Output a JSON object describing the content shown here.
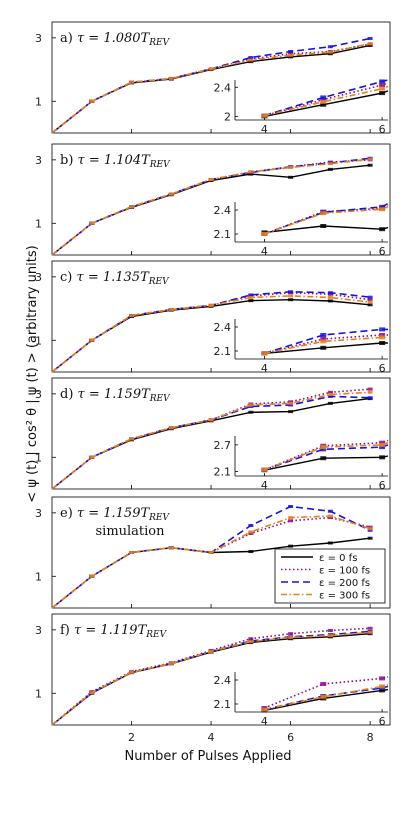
{
  "figure": {
    "xlabel": "Number of Pulses Applied",
    "ylabel": "< ψ (t) | cos² θ | ψ (t) > (arbitrary units)",
    "x_ticks": [
      "2",
      "4",
      "6",
      "8"
    ],
    "y_ticks": [
      "1",
      "3"
    ]
  },
  "colors": {
    "eps0": "#000000",
    "eps100": "#8b0a8b",
    "eps200": "#1515d9",
    "eps300": "#e8801a"
  },
  "legend": {
    "entries": [
      "ε = 0 fs",
      "ε = 100 fs",
      "ε = 200 fs",
      "ε = 300 fs"
    ]
  },
  "chart_data": [
    {
      "type": "line",
      "label": "a)",
      "title": "τ = 1.080T",
      "title_sub": "REV",
      "xlim": [
        0,
        8.5
      ],
      "ylim": [
        0,
        3.5
      ],
      "series": [
        {
          "name": "ε = 0 fs",
          "x": [
            0,
            1,
            2,
            3,
            4,
            5,
            6,
            7,
            8
          ],
          "y": [
            0,
            1.0,
            1.58,
            1.7,
            2.0,
            2.25,
            2.4,
            2.5,
            2.76
          ]
        },
        {
          "name": "ε = 100 fs",
          "x": [
            0,
            1,
            2,
            3,
            4,
            5,
            6,
            7,
            8
          ],
          "y": [
            0,
            1.0,
            1.6,
            1.72,
            2.02,
            2.33,
            2.5,
            2.57,
            2.8
          ]
        },
        {
          "name": "ε = 200 fs",
          "x": [
            0,
            1,
            2,
            3,
            4,
            5,
            6,
            7,
            8
          ],
          "y": [
            0,
            1.0,
            1.6,
            1.72,
            2.02,
            2.38,
            2.57,
            2.72,
            2.98
          ]
        },
        {
          "name": "ε = 300 fs",
          "x": [
            0,
            1,
            2,
            3,
            4,
            5,
            6,
            7,
            8
          ],
          "y": [
            0,
            1.0,
            1.6,
            1.72,
            2.02,
            2.3,
            2.45,
            2.55,
            2.82
          ]
        }
      ],
      "inset": {
        "xlim": [
          3.5,
          6.1
        ],
        "ylim": [
          1.95,
          2.5
        ],
        "x_ticks": [
          "4",
          "6"
        ],
        "y_ticks": [
          "2",
          "2.4"
        ],
        "series": [
          {
            "name": "ε = 0 fs",
            "x": [
              4,
              5,
              6,
              6.1
            ],
            "y": [
              2.0,
              2.16,
              2.32,
              2.35
            ]
          },
          {
            "name": "ε = 100 fs",
            "x": [
              4,
              5,
              6,
              6.1
            ],
            "y": [
              2.01,
              2.23,
              2.43,
              2.46
            ]
          },
          {
            "name": "ε = 200 fs",
            "x": [
              4,
              5,
              6,
              6.1
            ],
            "y": [
              2.01,
              2.26,
              2.48,
              2.5
            ]
          },
          {
            "name": "ε = 300 fs",
            "x": [
              4,
              5,
              6,
              6.1
            ],
            "y": [
              2.01,
              2.2,
              2.38,
              2.41
            ]
          }
        ]
      }
    },
    {
      "type": "line",
      "label": "b)",
      "title": "τ = 1.104T",
      "title_sub": "REV",
      "xlim": [
        0,
        8.5
      ],
      "ylim": [
        0,
        3.5
      ],
      "series": [
        {
          "name": "ε = 0 fs",
          "x": [
            0,
            1,
            2,
            3,
            4,
            5,
            6,
            7,
            8
          ],
          "y": [
            0,
            1.0,
            1.5,
            1.9,
            2.35,
            2.55,
            2.45,
            2.7,
            2.83
          ]
        },
        {
          "name": "ε = 100 fs",
          "x": [
            0,
            1,
            2,
            3,
            4,
            5,
            6,
            7,
            8
          ],
          "y": [
            0,
            1.0,
            1.52,
            1.92,
            2.38,
            2.62,
            2.78,
            2.93,
            3.0
          ]
        },
        {
          "name": "ε = 200 fs",
          "x": [
            0,
            1,
            2,
            3,
            4,
            5,
            6,
            7,
            8
          ],
          "y": [
            0,
            1.0,
            1.52,
            1.92,
            2.38,
            2.6,
            2.78,
            2.9,
            3.05
          ]
        },
        {
          "name": "ε = 300 fs",
          "x": [
            0,
            1,
            2,
            3,
            4,
            5,
            6,
            7,
            8
          ],
          "y": [
            0,
            1.0,
            1.52,
            1.92,
            2.38,
            2.62,
            2.76,
            2.88,
            3.02
          ]
        }
      ],
      "inset": {
        "xlim": [
          3.5,
          6.1
        ],
        "ylim": [
          2.0,
          2.5
        ],
        "x_ticks": [
          "4",
          "6"
        ],
        "y_ticks": [
          "2.1",
          "2.4"
        ],
        "series": [
          {
            "name": "ε = 0 fs",
            "x": [
              4,
              5,
              6,
              6.1
            ],
            "y": [
              2.12,
              2.2,
              2.16,
              2.18
            ]
          },
          {
            "name": "ε = 100 fs",
            "x": [
              4,
              5,
              6,
              6.1
            ],
            "y": [
              2.1,
              2.38,
              2.42,
              2.46
            ]
          },
          {
            "name": "ε = 200 fs",
            "x": [
              4,
              5,
              6,
              6.1
            ],
            "y": [
              2.1,
              2.37,
              2.44,
              2.48
            ]
          },
          {
            "name": "ε = 300 fs",
            "x": [
              4,
              5,
              6,
              6.1
            ],
            "y": [
              2.1,
              2.36,
              2.41,
              2.44
            ]
          }
        ]
      }
    },
    {
      "type": "line",
      "label": "c)",
      "title": "τ = 1.135T",
      "title_sub": "REV",
      "xlim": [
        0,
        8.5
      ],
      "ylim": [
        0,
        3.5
      ],
      "series": [
        {
          "name": "ε = 0 fs",
          "x": [
            0,
            1,
            2,
            3,
            4,
            5,
            6,
            7,
            8
          ],
          "y": [
            0,
            1.0,
            1.75,
            1.95,
            2.07,
            2.25,
            2.28,
            2.24,
            2.12
          ]
        },
        {
          "name": "ε = 100 fs",
          "x": [
            0,
            1,
            2,
            3,
            4,
            5,
            6,
            7,
            8
          ],
          "y": [
            0,
            1.0,
            1.78,
            1.97,
            2.1,
            2.4,
            2.5,
            2.45,
            2.28
          ]
        },
        {
          "name": "ε = 200 fs",
          "x": [
            0,
            1,
            2,
            3,
            4,
            5,
            6,
            7,
            8
          ],
          "y": [
            0,
            1.0,
            1.78,
            1.97,
            2.1,
            2.43,
            2.53,
            2.5,
            2.36
          ]
        },
        {
          "name": "ε = 300 fs",
          "x": [
            0,
            1,
            2,
            3,
            4,
            5,
            6,
            7,
            8
          ],
          "y": [
            0,
            1.0,
            1.78,
            1.97,
            2.1,
            2.35,
            2.4,
            2.35,
            2.2
          ]
        }
      ],
      "inset": {
        "xlim": [
          3.5,
          6.1
        ],
        "ylim": [
          2.0,
          2.5
        ],
        "x_ticks": [
          "4",
          "6"
        ],
        "y_ticks": [
          "2.1",
          "2.4"
        ],
        "series": [
          {
            "name": "ε = 0 fs",
            "x": [
              4,
              5,
              6,
              6.1
            ],
            "y": [
              2.07,
              2.14,
              2.2,
              2.2
            ]
          },
          {
            "name": "ε = 100 fs",
            "x": [
              4,
              5,
              6,
              6.1
            ],
            "y": [
              2.07,
              2.25,
              2.3,
              2.3
            ]
          },
          {
            "name": "ε = 200 fs",
            "x": [
              4,
              5,
              6,
              6.1
            ],
            "y": [
              2.07,
              2.3,
              2.37,
              2.37
            ]
          },
          {
            "name": "ε = 300 fs",
            "x": [
              4,
              5,
              6,
              6.1
            ],
            "y": [
              2.07,
              2.22,
              2.27,
              2.27
            ]
          }
        ]
      }
    },
    {
      "type": "line",
      "label": "d)",
      "title": "τ = 1.159T",
      "title_sub": "REV",
      "xlim": [
        0,
        8.5
      ],
      "ylim": [
        0,
        3.5
      ],
      "series": [
        {
          "name": "ε = 0 fs",
          "x": [
            0,
            1,
            2,
            3,
            4,
            5,
            6,
            7,
            8
          ],
          "y": [
            0,
            1.0,
            1.55,
            1.9,
            2.15,
            2.42,
            2.44,
            2.7,
            2.85
          ]
        },
        {
          "name": "ε = 100 fs",
          "x": [
            0,
            1,
            2,
            3,
            4,
            5,
            6,
            7,
            8
          ],
          "y": [
            0,
            1.0,
            1.58,
            1.93,
            2.18,
            2.68,
            2.75,
            3.05,
            3.15
          ]
        },
        {
          "name": "ε = 200 fs",
          "x": [
            0,
            1,
            2,
            3,
            4,
            5,
            6,
            7,
            8
          ],
          "y": [
            0,
            1.0,
            1.58,
            1.93,
            2.18,
            2.6,
            2.65,
            2.92,
            2.88
          ]
        },
        {
          "name": "ε = 300 fs",
          "x": [
            0,
            1,
            2,
            3,
            4,
            5,
            6,
            7,
            8
          ],
          "y": [
            0,
            1.0,
            1.58,
            1.93,
            2.18,
            2.65,
            2.7,
            2.98,
            3.05
          ]
        }
      ],
      "inset": {
        "xlim": [
          3.5,
          6.1
        ],
        "ylim": [
          2.0,
          2.9
        ],
        "x_ticks": [
          "4",
          "6"
        ],
        "y_ticks": [
          "2.1",
          "2.7"
        ],
        "series": [
          {
            "name": "ε = 0 fs",
            "x": [
              4,
              5,
              6,
              6.1
            ],
            "y": [
              2.13,
              2.4,
              2.42,
              2.45
            ]
          },
          {
            "name": "ε = 100 fs",
            "x": [
              4,
              5,
              6,
              6.1
            ],
            "y": [
              2.14,
              2.68,
              2.75,
              2.8
            ]
          },
          {
            "name": "ε = 200 fs",
            "x": [
              4,
              5,
              6,
              6.1
            ],
            "y": [
              2.14,
              2.6,
              2.65,
              2.7
            ]
          },
          {
            "name": "ε = 300 fs",
            "x": [
              4,
              5,
              6,
              6.1
            ],
            "y": [
              2.14,
              2.65,
              2.7,
              2.75
            ]
          }
        ]
      }
    },
    {
      "type": "line",
      "label": "e)",
      "title": "τ = 1.159T",
      "title_sub": "REV",
      "subtitle": "simulation",
      "xlim": [
        0,
        8.5
      ],
      "ylim": [
        0,
        3.5
      ],
      "series": [
        {
          "name": "ε = 0 fs",
          "x": [
            0,
            1,
            2,
            3,
            4,
            5,
            6,
            7,
            8
          ],
          "y": [
            0,
            1.0,
            1.75,
            1.9,
            1.75,
            1.78,
            1.95,
            2.05,
            2.2
          ]
        },
        {
          "name": "ε = 100 fs",
          "x": [
            0,
            1,
            2,
            3,
            4,
            5,
            6,
            7,
            8
          ],
          "y": [
            0,
            1.0,
            1.75,
            1.9,
            1.75,
            2.35,
            2.75,
            2.85,
            2.55
          ]
        },
        {
          "name": "ε = 200 fs",
          "x": [
            0,
            1,
            2,
            3,
            4,
            5,
            6,
            7,
            8
          ],
          "y": [
            0,
            1.0,
            1.75,
            1.9,
            1.75,
            2.6,
            3.2,
            3.05,
            2.45
          ]
        },
        {
          "name": "ε = 300 fs",
          "x": [
            0,
            1,
            2,
            3,
            4,
            5,
            6,
            7,
            8
          ],
          "y": [
            0,
            1.0,
            1.75,
            1.9,
            1.75,
            2.4,
            2.85,
            2.9,
            2.5
          ]
        }
      ]
    },
    {
      "type": "line",
      "label": "f)",
      "title": "τ = 1.119T",
      "title_sub": "REV",
      "xlim": [
        0,
        8.5
      ],
      "ylim": [
        0,
        3.5
      ],
      "series": [
        {
          "name": "ε = 0 fs",
          "x": [
            0,
            1,
            2,
            3,
            4,
            5,
            6,
            7,
            8
          ],
          "y": [
            0,
            1.0,
            1.65,
            1.93,
            2.3,
            2.6,
            2.72,
            2.78,
            2.88
          ]
        },
        {
          "name": "ε = 100 fs",
          "x": [
            0,
            1,
            2,
            3,
            4,
            5,
            6,
            7,
            8
          ],
          "y": [
            0,
            1.05,
            1.68,
            1.96,
            2.35,
            2.72,
            2.88,
            2.98,
            3.05
          ]
        },
        {
          "name": "ε = 200 fs",
          "x": [
            0,
            1,
            2,
            3,
            4,
            5,
            6,
            7,
            8
          ],
          "y": [
            0,
            1.02,
            1.66,
            1.94,
            2.32,
            2.65,
            2.78,
            2.85,
            2.95
          ]
        },
        {
          "name": "ε = 300 fs",
          "x": [
            0,
            1,
            2,
            3,
            4,
            5,
            6,
            7,
            8
          ],
          "y": [
            0,
            1.02,
            1.66,
            1.94,
            2.32,
            2.63,
            2.76,
            2.82,
            2.92
          ]
        }
      ],
      "inset": {
        "xlim": [
          3.5,
          6.1
        ],
        "ylim": [
          2.0,
          2.5
        ],
        "x_ticks": [
          "4",
          "6"
        ],
        "y_ticks": [
          "2.1",
          "2.4"
        ],
        "series": [
          {
            "name": "ε = 0 fs",
            "x": [
              4,
              5,
              6,
              6.1
            ],
            "y": [
              2.02,
              2.17,
              2.27,
              2.28
            ]
          },
          {
            "name": "ε = 100 fs",
            "x": [
              4,
              5,
              6,
              6.1
            ],
            "y": [
              2.05,
              2.35,
              2.42,
              2.44
            ]
          },
          {
            "name": "ε = 200 fs",
            "x": [
              4,
              5,
              6,
              6.1
            ],
            "y": [
              2.03,
              2.2,
              2.3,
              2.32
            ]
          },
          {
            "name": "ε = 300 fs",
            "x": [
              4,
              5,
              6,
              6.1
            ],
            "y": [
              2.03,
              2.19,
              2.32,
              2.34
            ]
          }
        ]
      }
    }
  ]
}
